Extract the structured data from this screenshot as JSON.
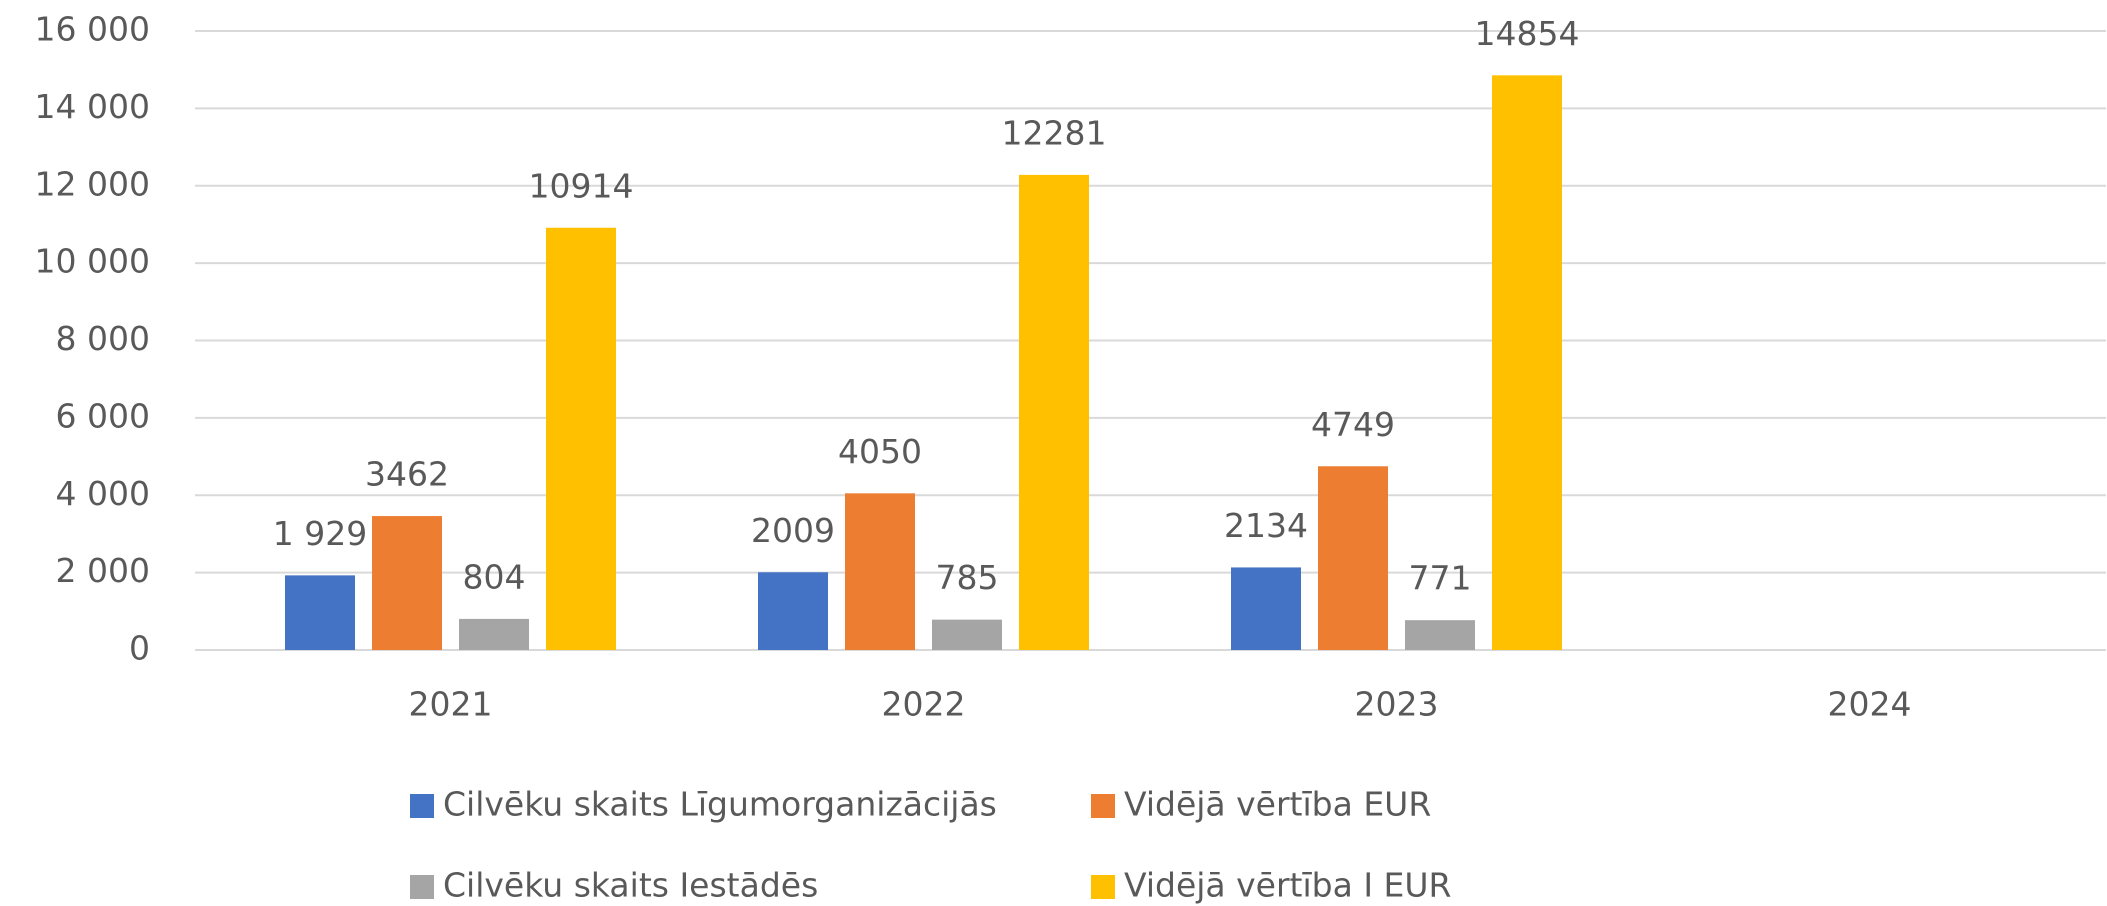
{
  "chart_data": {
    "type": "bar",
    "categories": [
      "2021",
      "2022",
      "2023",
      "2024"
    ],
    "series": [
      {
        "name": "Cilvēku skaits Līgumorganizācijās",
        "color": "#4472c4",
        "values": [
          1929,
          2009,
          2134,
          null
        ],
        "value_labels": [
          "1 929",
          "2009",
          "2134",
          null
        ]
      },
      {
        "name": "Vidējā vērtība EUR",
        "color": "#ed7d31",
        "values": [
          3462,
          4050,
          4749,
          null
        ]
      },
      {
        "name": "Cilvēku skaits Iestādēs",
        "color": "#a5a5a5",
        "values": [
          804,
          785,
          771,
          null
        ]
      },
      {
        "name": "Vidējā vērtība I EUR",
        "color": "#ffc000",
        "values": [
          10914,
          12281,
          14854,
          null
        ]
      }
    ],
    "ylim": [
      0,
      16000
    ],
    "yticks": [
      0,
      {
        "value": 2000,
        "label": "2 000"
      },
      {
        "value": 4000,
        "label": "4 000"
      },
      {
        "value": 6000,
        "label": "6 000"
      },
      {
        "value": 8000,
        "label": "8 000"
      },
      {
        "value": 10000,
        "label": "10 000"
      },
      {
        "value": 12000,
        "label": "12 000"
      },
      {
        "value": 14000,
        "label": "14 000"
      },
      {
        "value": 16000,
        "label": "16 000"
      }
    ],
    "grid": true,
    "legend": "bottom"
  }
}
